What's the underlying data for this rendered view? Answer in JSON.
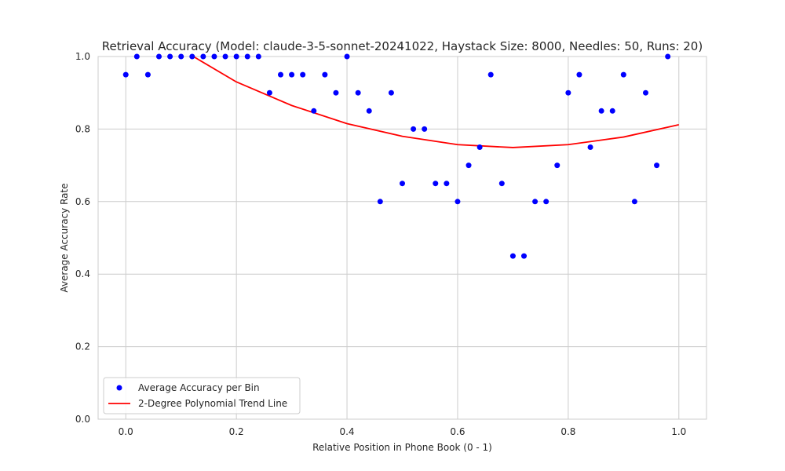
{
  "chart_data": {
    "type": "scatter",
    "title": "Retrieval Accuracy (Model: claude-3-5-sonnet-20241022, Haystack Size: 8000, Needles: 50, Runs: 20)",
    "xlabel": "Relative Position in Phone Book (0 - 1)",
    "ylabel": "Average Accuracy Rate",
    "xlim": [
      -0.05,
      1.05
    ],
    "ylim": [
      0.0,
      1.0
    ],
    "xticks": [
      "0.0",
      "0.2",
      "0.4",
      "0.6",
      "0.8",
      "1.0"
    ],
    "yticks": [
      "0.0",
      "0.2",
      "0.4",
      "0.6",
      "0.8",
      "1.0"
    ],
    "grid": true,
    "legend_position": "lower-left",
    "series": [
      {
        "name": "Average Accuracy per Bin",
        "kind": "scatter",
        "color": "#0000ff",
        "x": [
          0.0,
          0.02,
          0.04,
          0.06,
          0.08,
          0.1,
          0.12,
          0.14,
          0.16,
          0.18,
          0.2,
          0.22,
          0.24,
          0.26,
          0.28,
          0.3,
          0.32,
          0.34,
          0.36,
          0.38,
          0.4,
          0.42,
          0.44,
          0.46,
          0.48,
          0.5,
          0.52,
          0.54,
          0.56,
          0.58,
          0.6,
          0.62,
          0.64,
          0.66,
          0.68,
          0.7,
          0.72,
          0.74,
          0.76,
          0.78,
          0.8,
          0.82,
          0.84,
          0.86,
          0.88,
          0.9,
          0.92,
          0.94,
          0.96,
          0.98
        ],
        "y": [
          0.95,
          1.0,
          0.95,
          1.0,
          1.0,
          1.0,
          1.0,
          1.0,
          1.0,
          1.0,
          1.0,
          1.0,
          1.0,
          0.9,
          0.95,
          0.95,
          0.95,
          0.85,
          0.95,
          0.9,
          1.0,
          0.9,
          0.85,
          0.6,
          0.9,
          0.65,
          0.8,
          0.8,
          0.65,
          0.65,
          0.6,
          0.7,
          0.75,
          0.95,
          0.65,
          0.45,
          0.45,
          0.6,
          0.6,
          0.7,
          0.9,
          0.95,
          0.75,
          0.85,
          0.85,
          0.95,
          0.6,
          0.9,
          0.7,
          1.0
        ]
      },
      {
        "name": "2-Degree Polynomial Trend Line",
        "kind": "line",
        "color": "#ff0000",
        "x": [
          0.0,
          0.1,
          0.2,
          0.3,
          0.4,
          0.5,
          0.6,
          0.7,
          0.8,
          0.9,
          1.0
        ],
        "y": [
          1.09,
          1.02,
          0.93,
          0.865,
          0.815,
          0.78,
          0.757,
          0.749,
          0.757,
          0.778,
          0.812
        ]
      }
    ]
  }
}
